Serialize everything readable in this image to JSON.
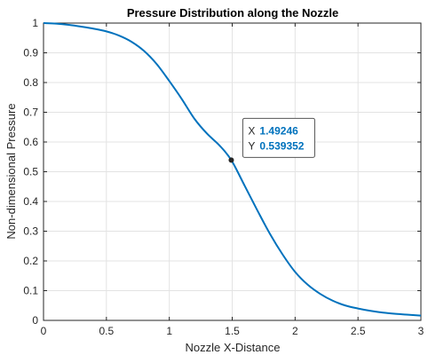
{
  "chart_data": {
    "type": "line",
    "title": "Pressure Distribution along the Nozzle",
    "xlabel": "Nozzle X-Distance",
    "ylabel": "Non-dimensional Pressure",
    "xlim": [
      0,
      3
    ],
    "ylim": [
      0,
      1
    ],
    "xticks": [
      0,
      0.5,
      1,
      1.5,
      2,
      2.5,
      3
    ],
    "xtick_labels": [
      "0",
      "0.5",
      "1",
      "1.5",
      "2",
      "2.5",
      "3"
    ],
    "yticks": [
      0,
      0.1,
      0.2,
      0.3,
      0.4,
      0.5,
      0.6,
      0.7,
      0.8,
      0.9,
      1
    ],
    "ytick_labels": [
      "0",
      "0.1",
      "0.2",
      "0.3",
      "0.4",
      "0.5",
      "0.6",
      "0.7",
      "0.8",
      "0.9",
      "1"
    ],
    "grid": true,
    "series": [
      {
        "color": "#0072BD",
        "x": [
          0,
          0.1,
          0.2,
          0.3,
          0.4,
          0.5,
          0.6,
          0.7,
          0.8,
          0.9,
          1.0,
          1.1,
          1.2,
          1.3,
          1.4,
          1.49246,
          1.6,
          1.7,
          1.8,
          1.9,
          2.0,
          2.1,
          2.2,
          2.3,
          2.4,
          2.5,
          2.6,
          2.7,
          2.8,
          2.9,
          3.0
        ],
        "y": [
          1.0,
          0.998,
          0.994,
          0.988,
          0.981,
          0.972,
          0.958,
          0.937,
          0.906,
          0.862,
          0.805,
          0.744,
          0.678,
          0.628,
          0.588,
          0.539352,
          0.452,
          0.37,
          0.291,
          0.222,
          0.163,
          0.12,
          0.089,
          0.066,
          0.05,
          0.04,
          0.032,
          0.026,
          0.022,
          0.019,
          0.016
        ]
      }
    ],
    "datatip": {
      "x": 1.49246,
      "y": 0.539352,
      "x_key": "X",
      "y_key": "Y",
      "x_text": "1.49246",
      "y_text": "0.539352",
      "value_color": "#0072BD"
    }
  }
}
